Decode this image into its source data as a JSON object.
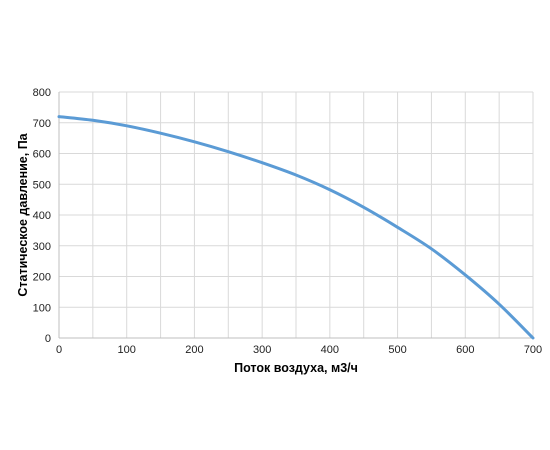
{
  "chart_data": {
    "type": "line",
    "title": "",
    "xlabel": "Поток воздуха, м3/ч",
    "ylabel": "Статическое давление, Па",
    "xlim": [
      0,
      700
    ],
    "ylim": [
      0,
      800
    ],
    "x_ticks": [
      "0",
      "100",
      "200",
      "300",
      "400",
      "500",
      "600",
      "700"
    ],
    "y_ticks": [
      "0",
      "100",
      "200",
      "300",
      "400",
      "500",
      "600",
      "700",
      "800"
    ],
    "x_minor_step": 50,
    "grid": true,
    "legend": "none",
    "series": [
      {
        "color": "#5b9bd5",
        "x": [
          0,
          50,
          100,
          150,
          200,
          250,
          300,
          350,
          400,
          450,
          500,
          550,
          600,
          650,
          700
        ],
        "y": [
          720,
          708,
          690,
          666,
          638,
          606,
          570,
          530,
          482,
          425,
          360,
          290,
          205,
          110,
          0
        ]
      }
    ]
  },
  "colors": {
    "grid": "#d9d9d9",
    "axis_line": "#bfbfbf",
    "line": "#5b9bd5"
  }
}
